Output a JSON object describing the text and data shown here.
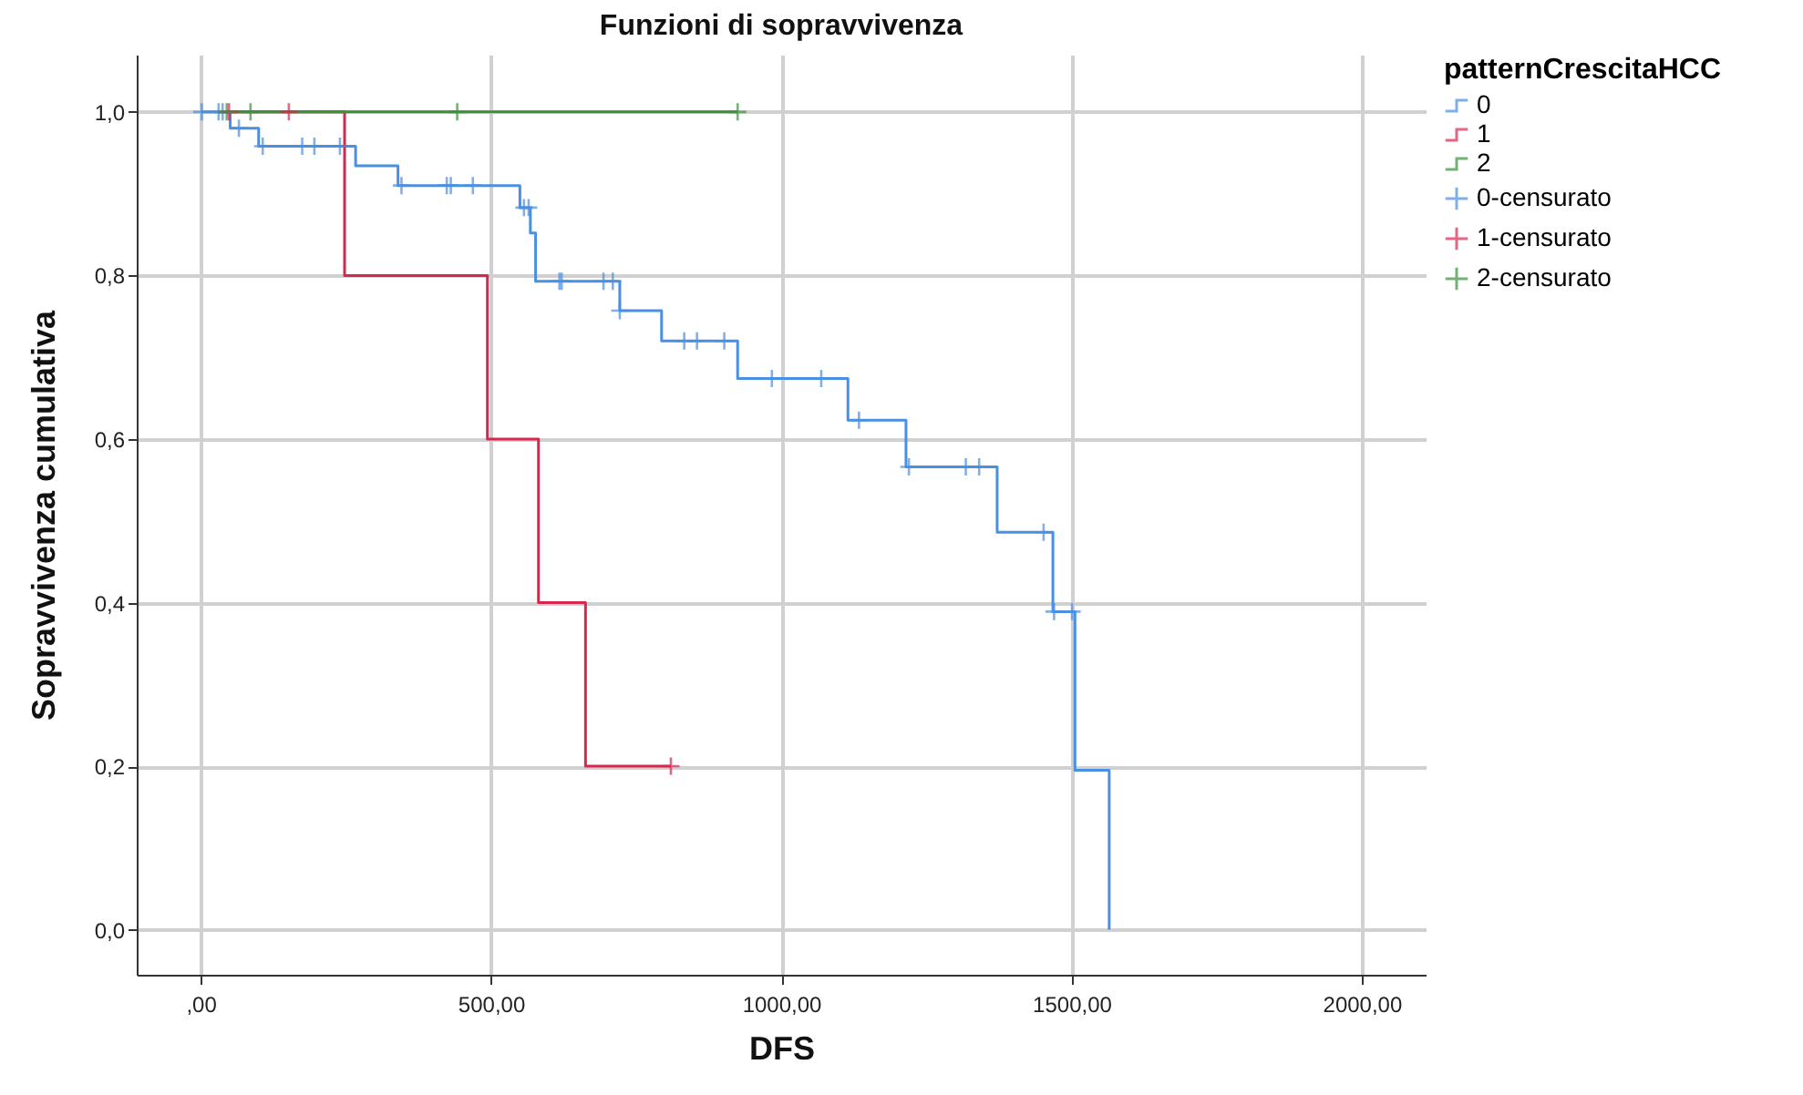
{
  "chart_data": {
    "type": "step",
    "title": "Funzioni di sopravvivenza",
    "xlabel": "DFS",
    "ylabel": "Sopravvivenza cumulativa",
    "legend_title": "patternCrescitaHCC",
    "legend": "top right",
    "grid": true,
    "xlim": [
      -110,
      2110
    ],
    "ylim": [
      -0.055,
      1.07
    ],
    "xticks": [
      {
        "value": 0,
        "label": ",00"
      },
      {
        "value": 500,
        "label": "500,00"
      },
      {
        "value": 1000,
        "label": "1000,00"
      },
      {
        "value": 1500,
        "label": "1500,00"
      },
      {
        "value": 2000,
        "label": "2000,00"
      }
    ],
    "yticks": [
      {
        "value": 0,
        "label": "0,0"
      },
      {
        "value": 0.2,
        "label": "0,2"
      },
      {
        "value": 0.4,
        "label": "0,4"
      },
      {
        "value": 0.6,
        "label": "0,6"
      },
      {
        "value": 0.8,
        "label": "0,8"
      },
      {
        "value": 1,
        "label": "1,0"
      }
    ],
    "series": [
      {
        "name": "0",
        "color": "#4a90e2",
        "x": [
          0,
          51,
          100,
          267,
          340,
          550,
          568,
          577,
          722,
          794,
          925,
          1115,
          1215,
          1372,
          1468,
          1506,
          1565
        ],
        "values": [
          1,
          0.98,
          0.958,
          0.934,
          0.91,
          0.883,
          0.852,
          0.793,
          0.757,
          0.72,
          0.674,
          0.623,
          0.566,
          0.486,
          0.389,
          0.195,
          0
        ]
      },
      {
        "name": "1",
        "color": "#d9264e",
        "x": [
          45,
          248,
          494,
          582,
          663,
          810
        ],
        "values": [
          1,
          0.8,
          0.6,
          0.4,
          0.2,
          0.2
        ]
      },
      {
        "name": "2",
        "color": "#3a913a",
        "x": [
          45,
          925
        ],
        "values": [
          1,
          1
        ]
      },
      {
        "name": "0-censurato",
        "type": "scatter",
        "marker": "cross",
        "color": "#4a90e2",
        "x": [
          2,
          31,
          38,
          66,
          107,
          175,
          196,
          240,
          346,
          424,
          431,
          469,
          557,
          565,
          618,
          622,
          694,
          710,
          722,
          833,
          855,
          902,
          984,
          1069,
          1134,
          1220,
          1318,
          1341,
          1452,
          1470,
          1501
        ],
        "values": [
          1,
          1,
          1,
          0.98,
          0.958,
          0.958,
          0.958,
          0.958,
          0.91,
          0.91,
          0.91,
          0.91,
          0.883,
          0.883,
          0.793,
          0.793,
          0.793,
          0.793,
          0.757,
          0.72,
          0.72,
          0.72,
          0.674,
          0.674,
          0.623,
          0.566,
          0.566,
          0.566,
          0.486,
          0.389,
          0.389
        ]
      },
      {
        "name": "1-censurato",
        "type": "scatter",
        "marker": "cross",
        "color": "#d9264e",
        "x": [
          49,
          152,
          810
        ],
        "values": [
          1,
          1,
          0.2
        ]
      },
      {
        "name": "2-censurato",
        "type": "scatter",
        "marker": "cross",
        "color": "#3a913a",
        "x": [
          45,
          86,
          442,
          925
        ],
        "values": [
          1,
          1,
          1,
          1
        ]
      }
    ]
  }
}
